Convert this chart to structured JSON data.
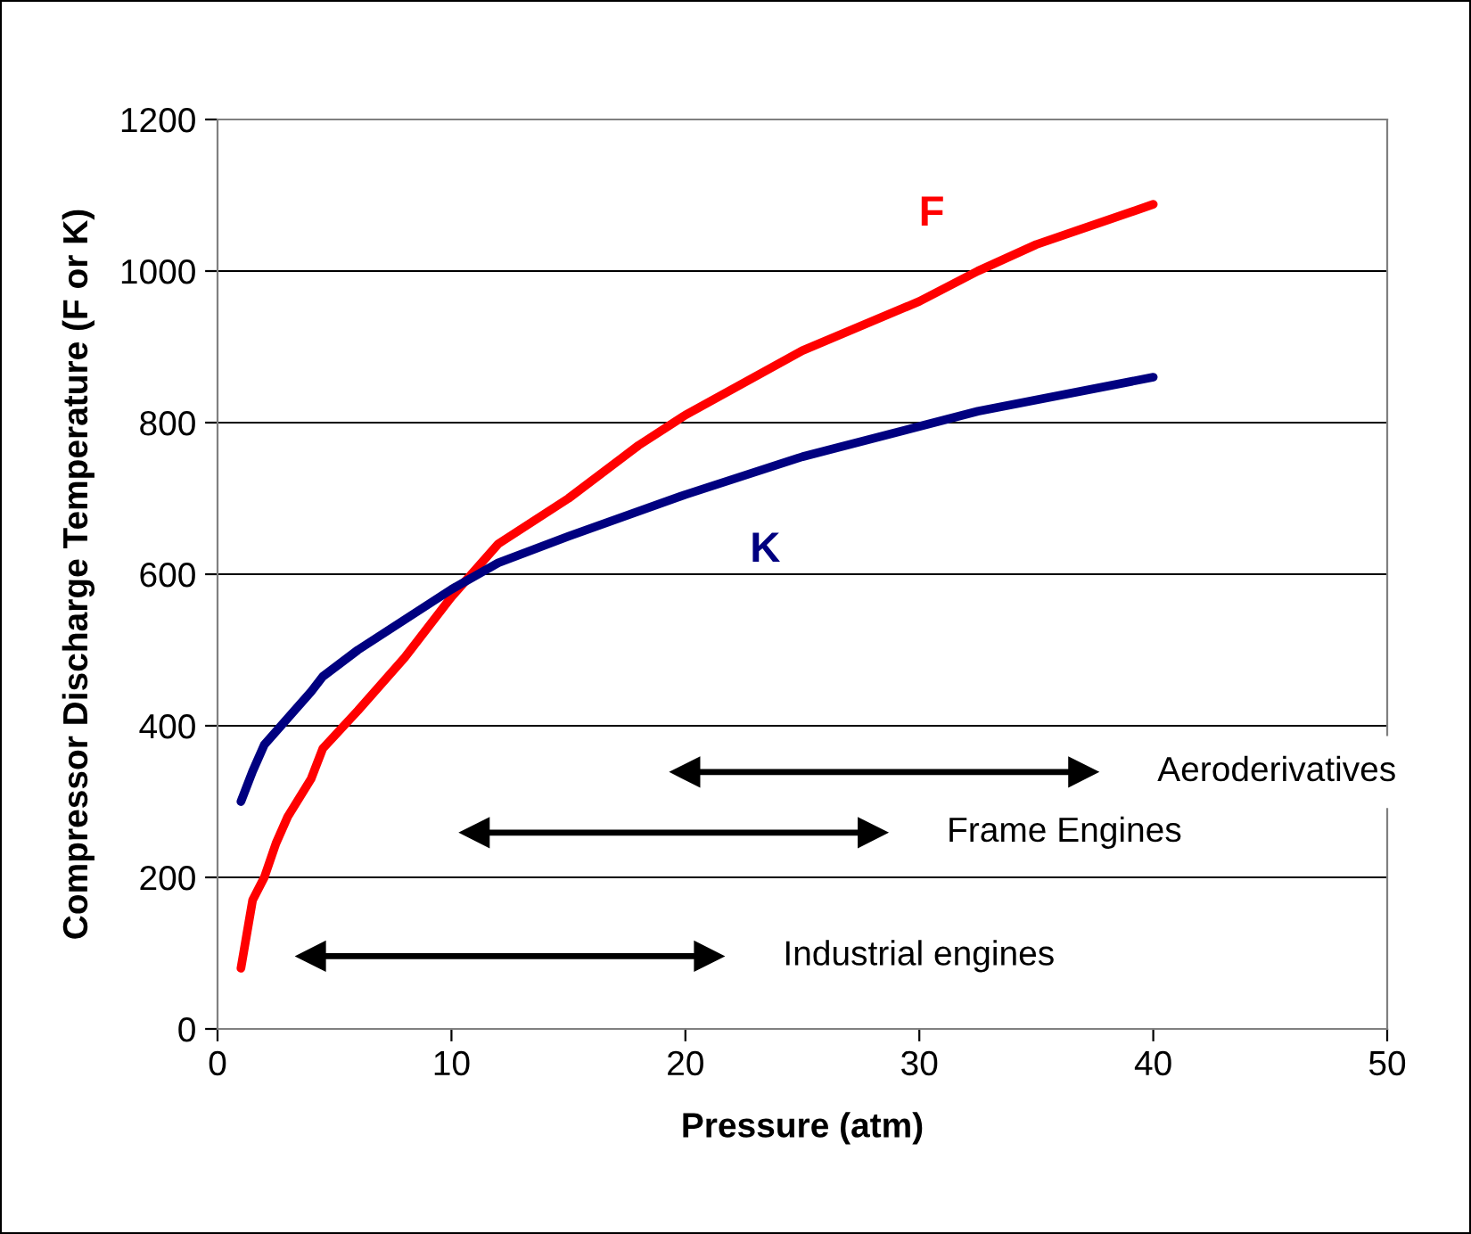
{
  "chart_data": {
    "type": "line",
    "xlabel": "Pressure (atm)",
    "ylabel": "Compressor Discharge Temperature (F or K)",
    "xlim": [
      0,
      50
    ],
    "xticks": [
      0,
      10,
      20,
      30,
      40,
      50
    ],
    "ylim": [
      0,
      1200
    ],
    "yticks": [
      0,
      200,
      400,
      600,
      800,
      1000,
      1200
    ],
    "grid": "y",
    "legend": false,
    "marker": "none",
    "series": [
      {
        "name": "F",
        "color": "#ff0000",
        "x": [
          1,
          1.5,
          2,
          2.5,
          3,
          4,
          4.5,
          6,
          8,
          10,
          12,
          15,
          18,
          20,
          25,
          30,
          32.5,
          35,
          40
        ],
        "values": [
          80,
          170,
          200,
          245,
          280,
          330,
          370,
          420,
          490,
          570,
          640,
          700,
          770,
          810,
          895,
          960,
          1000,
          1035,
          1088
        ]
      },
      {
        "name": "K",
        "color": "#000080",
        "x": [
          1,
          1.5,
          2,
          3,
          4,
          4.5,
          6,
          8,
          10,
          12,
          15,
          20,
          25,
          30,
          32.5,
          40
        ],
        "values": [
          300,
          340,
          375,
          410,
          445,
          465,
          500,
          540,
          580,
          615,
          650,
          705,
          755,
          795,
          815,
          860
        ]
      },
      {
        "color": "#000000",
        "marker": "triangle",
        "x": [
          20,
          37
        ],
        "values": [
          339,
          339
        ]
      },
      {
        "color": "#000000",
        "marker": "triangle",
        "x": [
          11,
          28
        ],
        "values": [
          259,
          259
        ]
      },
      {
        "color": "#000000",
        "marker": "triangle",
        "x": [
          4,
          21
        ],
        "values": [
          96,
          96
        ]
      }
    ],
    "annotations": [
      "Aeroderivatives",
      "Frame Engines",
      "Industrial engines"
    ]
  }
}
